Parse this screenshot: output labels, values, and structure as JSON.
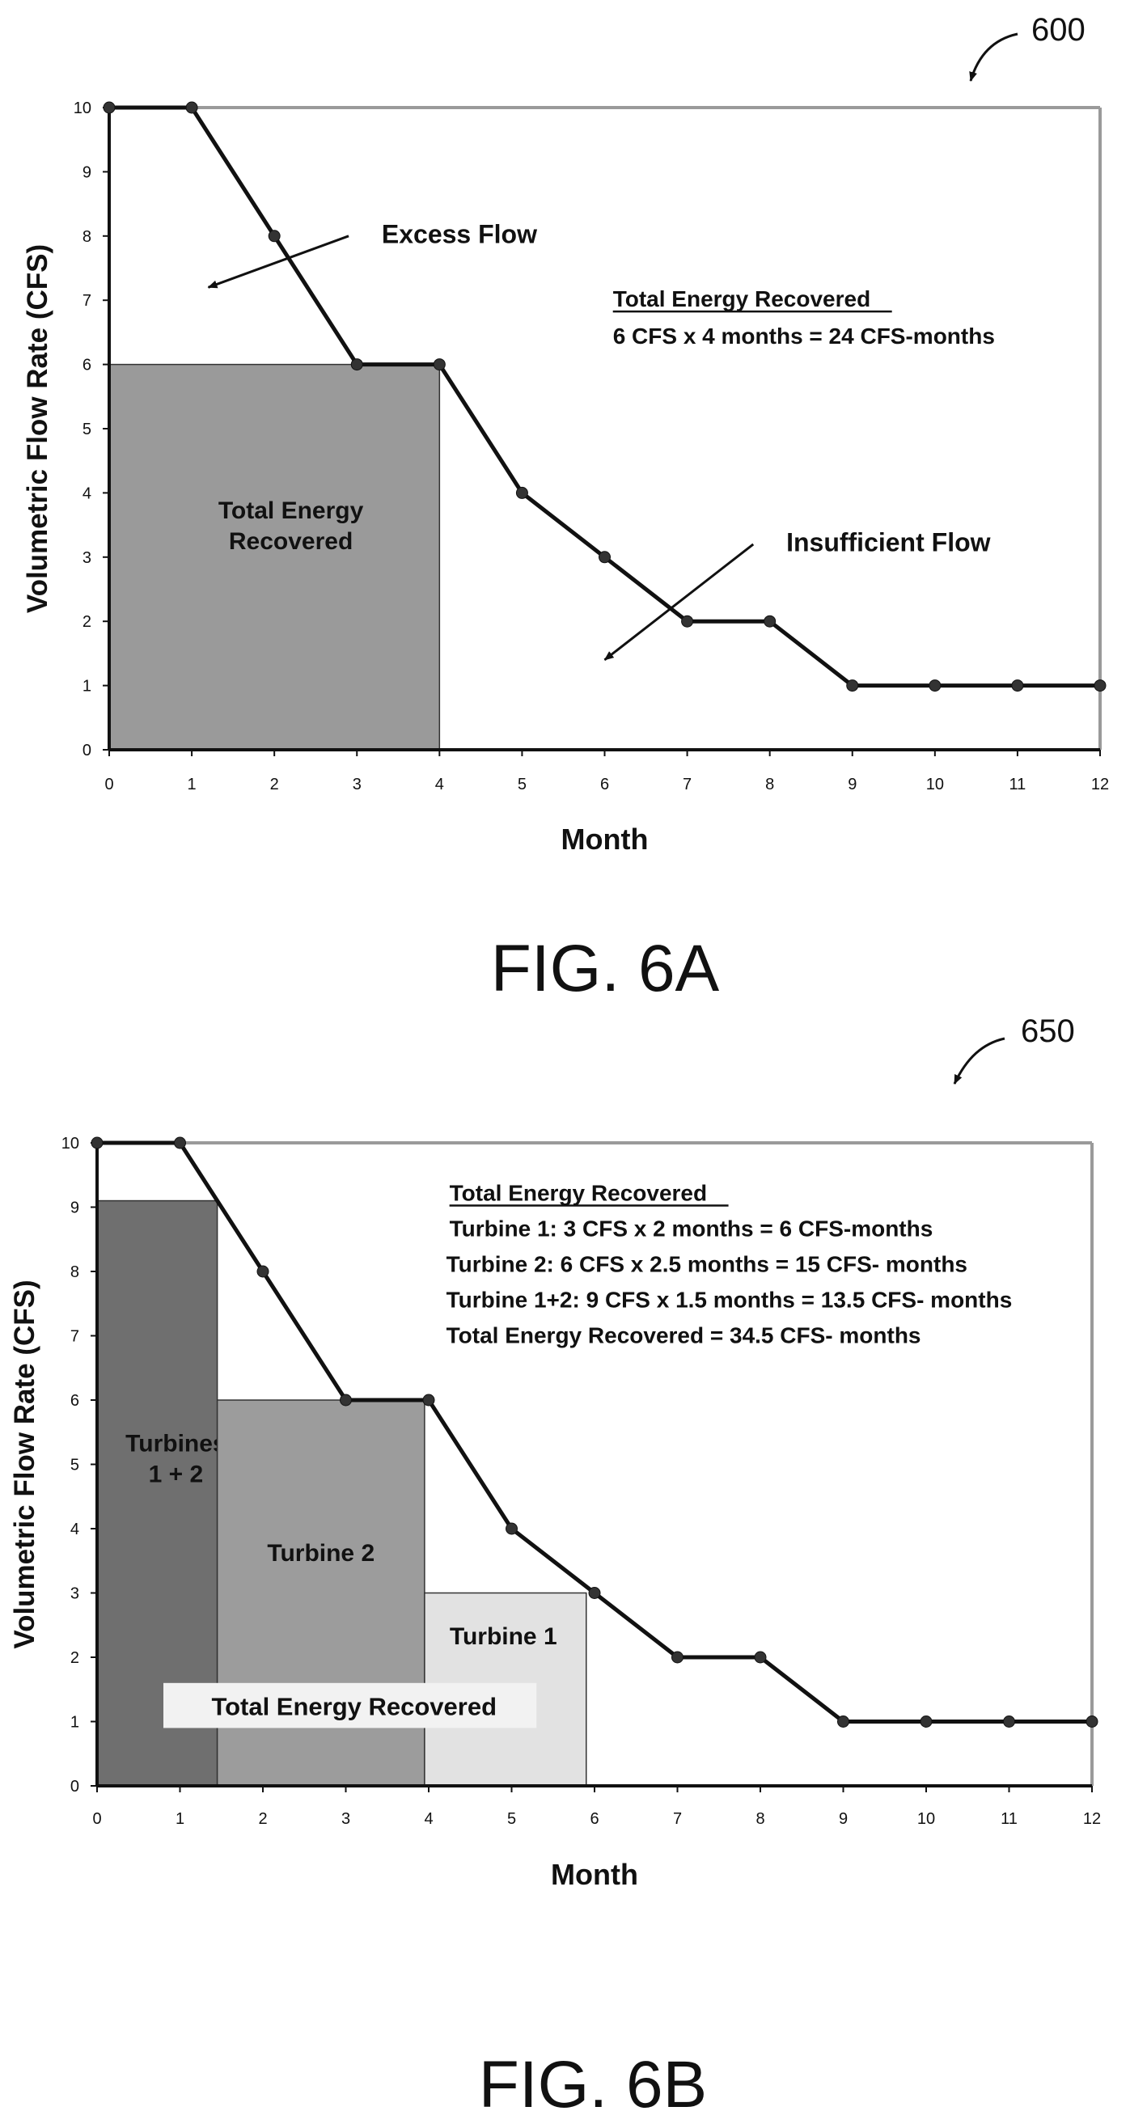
{
  "chart_data": [
    {
      "type": "line",
      "reference": "600",
      "caption": "FIG. 6A",
      "xlabel": "Month",
      "ylabel": "Volumetric Flow Rate (CFS)",
      "xlim": [
        0,
        12
      ],
      "ylim": [
        0,
        10
      ],
      "x_ticks": [
        0,
        1,
        2,
        3,
        4,
        5,
        6,
        7,
        8,
        9,
        10,
        11,
        12
      ],
      "y_ticks": [
        0,
        1,
        2,
        3,
        4,
        5,
        6,
        7,
        8,
        9,
        10
      ],
      "grid": false,
      "series": [
        {
          "x": [
            0,
            1,
            2,
            3,
            4,
            5,
            6,
            7,
            8,
            9,
            10,
            11,
            12
          ],
          "y": [
            10,
            10,
            8,
            6,
            6,
            4,
            3,
            2,
            2,
            1,
            1,
            1,
            1
          ]
        }
      ],
      "regions": [
        {
          "label_lines": [
            "Total Energy",
            "Recovered"
          ],
          "x0": 0,
          "x1": 4,
          "y0": 0,
          "y1": 6,
          "fill": "#9a9a9a",
          "text_x": 2.2,
          "text_y": 3.6
        }
      ],
      "annotations": [
        {
          "text": "Excess Flow",
          "text_x": 3.3,
          "text_y": 8.0,
          "arrow_from": [
            2.9,
            8.0
          ],
          "arrow_to": [
            1.2,
            7.2
          ]
        },
        {
          "text": "Insufficient Flow",
          "text_x": 8.2,
          "text_y": 3.2,
          "arrow_from": [
            7.8,
            3.2
          ],
          "arrow_to": [
            6.0,
            1.4
          ]
        }
      ],
      "notes": {
        "title": "Total Energy Recovered",
        "lines": [
          "6 CFS x 4 months  = 24 CFS-months"
        ],
        "text_x": 6.1,
        "title_y": 6.9
      }
    },
    {
      "type": "line",
      "reference": "650",
      "caption": "FIG. 6B",
      "xlabel": "Month",
      "ylabel": "Volumetric Flow Rate (CFS)",
      "xlim": [
        0,
        12
      ],
      "ylim": [
        0,
        10
      ],
      "x_ticks": [
        0,
        1,
        2,
        3,
        4,
        5,
        6,
        7,
        8,
        9,
        10,
        11,
        12
      ],
      "y_ticks": [
        0,
        1,
        2,
        3,
        4,
        5,
        6,
        7,
        8,
        9,
        10
      ],
      "grid": false,
      "series": [
        {
          "x": [
            0,
            1,
            2,
            3,
            4,
            5,
            6,
            7,
            8,
            9,
            10,
            11,
            12
          ],
          "y": [
            10,
            10,
            8,
            6,
            6,
            4,
            3,
            2,
            2,
            1,
            1,
            1,
            1
          ]
        }
      ],
      "regions": [
        {
          "label_lines": [
            "Turbines",
            "1 + 2"
          ],
          "x0": 0,
          "x1": 1.45,
          "y0": 0,
          "y1": 9.1,
          "fill": "#6f6f6f",
          "text_x": 0.95,
          "text_y": 5.2
        },
        {
          "label_lines": [
            "Turbine 2"
          ],
          "x0": 1.45,
          "x1": 3.95,
          "y0": 0,
          "y1": 6,
          "fill": "#9c9c9c",
          "text_x": 2.7,
          "text_y": 3.5
        },
        {
          "label_lines": [
            "Turbine 1"
          ],
          "x0": 3.95,
          "x1": 5.9,
          "y0": 0,
          "y1": 3,
          "fill": "#e2e2e2",
          "text_x": 4.9,
          "text_y": 2.2
        }
      ],
      "legend_box": {
        "text": "Total Energy Recovered",
        "x0": 0.8,
        "x1": 5.3,
        "y0": 0.9,
        "y1": 1.6,
        "text_x": 3.1,
        "text_y": 1.1
      },
      "notes": {
        "title": "Total Energy Recovered",
        "lines": [
          "Turbine 1: 3 CFS x 2 months  = 6 CFS-months",
          "Turbine 2: 6 CFS x 2.5 months  = 15 CFS- months",
          "Turbine 1+2: 9 CFS x 1.5 months  = 13.5 CFS- months",
          "Total Energy Recovered = 34.5 CFS- months"
        ],
        "text_x": 4.25,
        "title_y": 9.1
      }
    }
  ]
}
